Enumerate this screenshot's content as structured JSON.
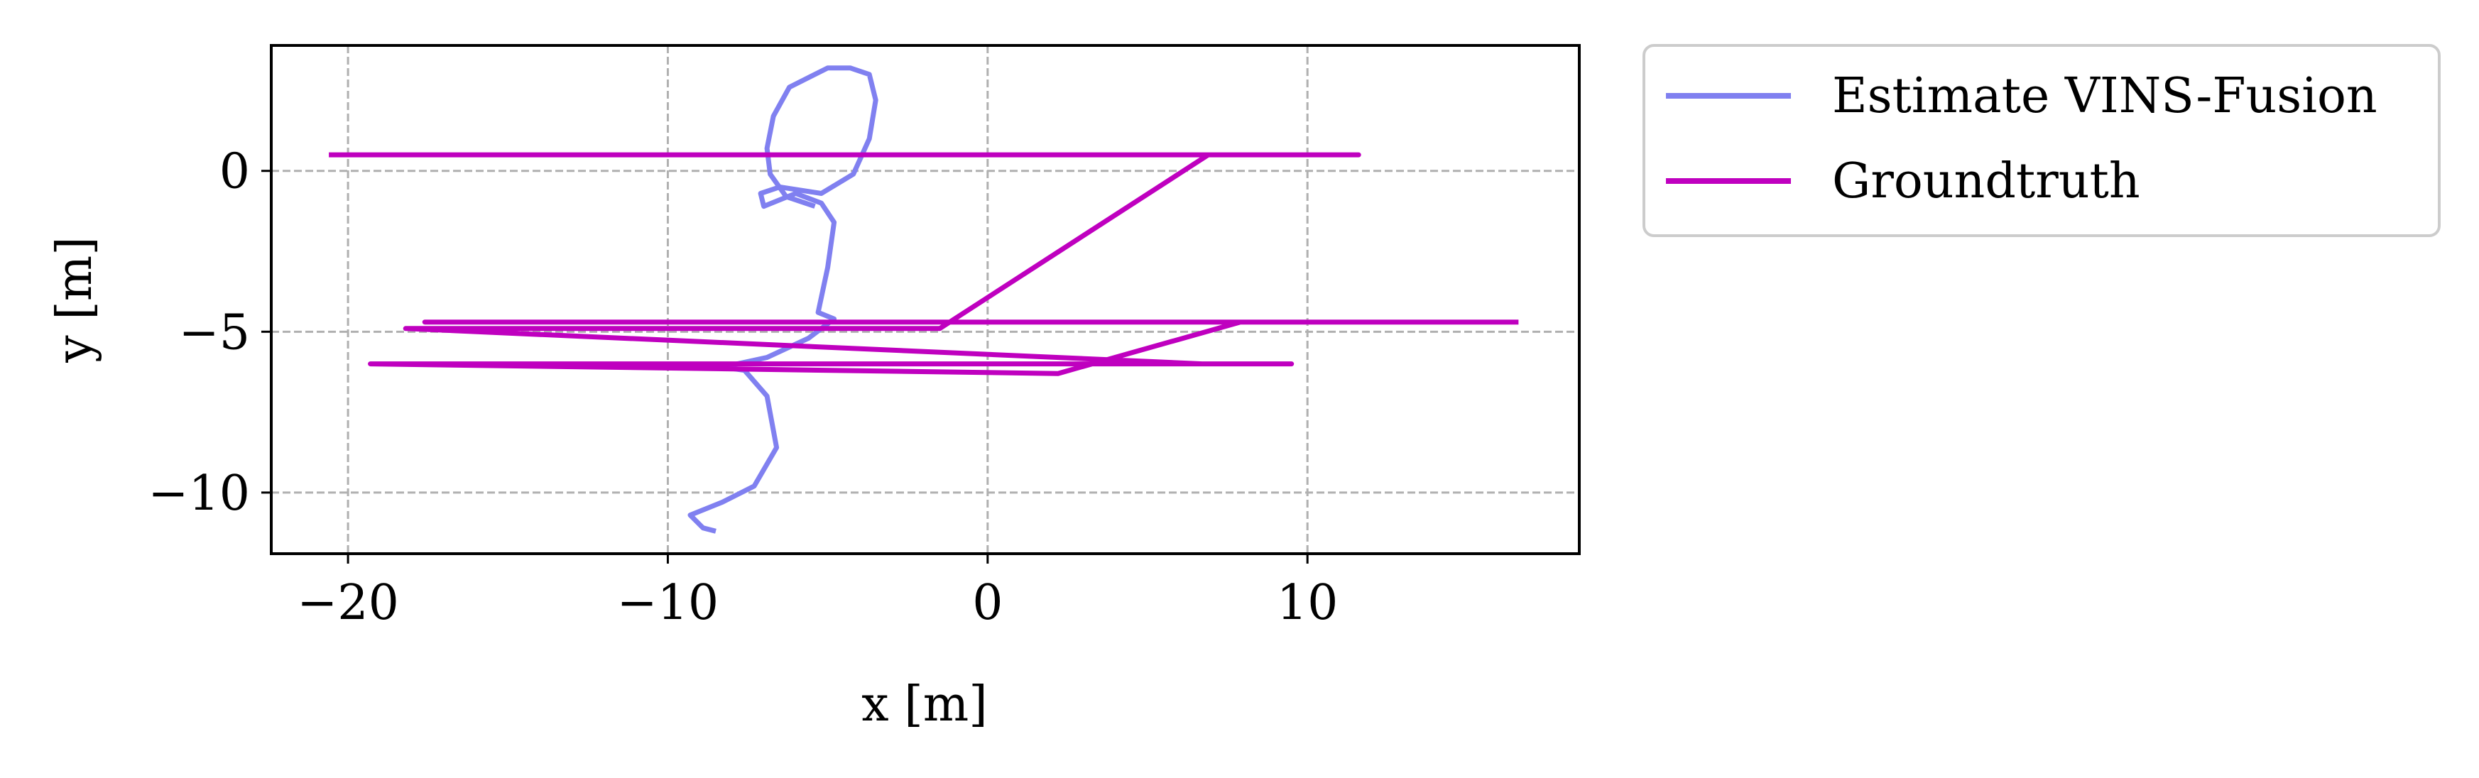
{
  "chart_data": {
    "type": "line",
    "xlabel": "x [m]",
    "ylabel": "y [m]",
    "xlim": [
      -22.4,
      18.5
    ],
    "ylim": [
      -11.9,
      3.9
    ],
    "x_ticks": [
      -20,
      -10,
      0,
      10
    ],
    "x_tick_labels": [
      "−20",
      "−10",
      "0",
      "10"
    ],
    "y_ticks": [
      0,
      -5,
      -10
    ],
    "y_tick_labels": [
      "0",
      "−5",
      "−10"
    ],
    "grid": true,
    "legend_placement": "outside top-right",
    "series": [
      {
        "name": "Estimate VINS-Fusion",
        "color": "#8080f0",
        "x": [
          -8.5,
          -8.9,
          -9.3,
          -8.3,
          -7.3,
          -6.6,
          -6.9,
          -7.6,
          -8.3,
          -6.9,
          -5.6,
          -4.8,
          -5.3,
          -5.0,
          -4.8,
          -5.2,
          -6.0,
          -6.5,
          -7.0,
          -7.1,
          -6.5,
          -5.2,
          -4.2,
          -3.7,
          -3.5,
          -3.7,
          -4.3,
          -5.0,
          -6.2,
          -6.7,
          -6.9,
          -6.8,
          -6.3,
          -5.4
        ],
        "y": [
          -11.2,
          -11.1,
          -10.7,
          -10.3,
          -9.8,
          -8.6,
          -7.0,
          -6.2,
          -6.1,
          -5.8,
          -5.2,
          -4.6,
          -4.4,
          -3.0,
          -1.6,
          -1.0,
          -0.7,
          -0.9,
          -1.1,
          -0.7,
          -0.5,
          -0.7,
          -0.1,
          1.0,
          2.2,
          3.0,
          3.2,
          3.2,
          2.6,
          1.7,
          0.7,
          -0.1,
          -0.8,
          -1.1
        ]
      },
      {
        "name": "Groundtruth",
        "color": "#bf00bf",
        "x": [
          -20.6,
          11.6,
          6.9,
          -1.5,
          -18.2,
          6.7,
          9.5,
          -19.3,
          2.2,
          7.9,
          -17.6,
          16.6
        ],
        "y": [
          0.5,
          0.5,
          0.5,
          -4.9,
          -4.9,
          -6.0,
          -6.0,
          -6.0,
          -6.3,
          -4.7,
          -4.7,
          -4.7
        ]
      }
    ]
  }
}
